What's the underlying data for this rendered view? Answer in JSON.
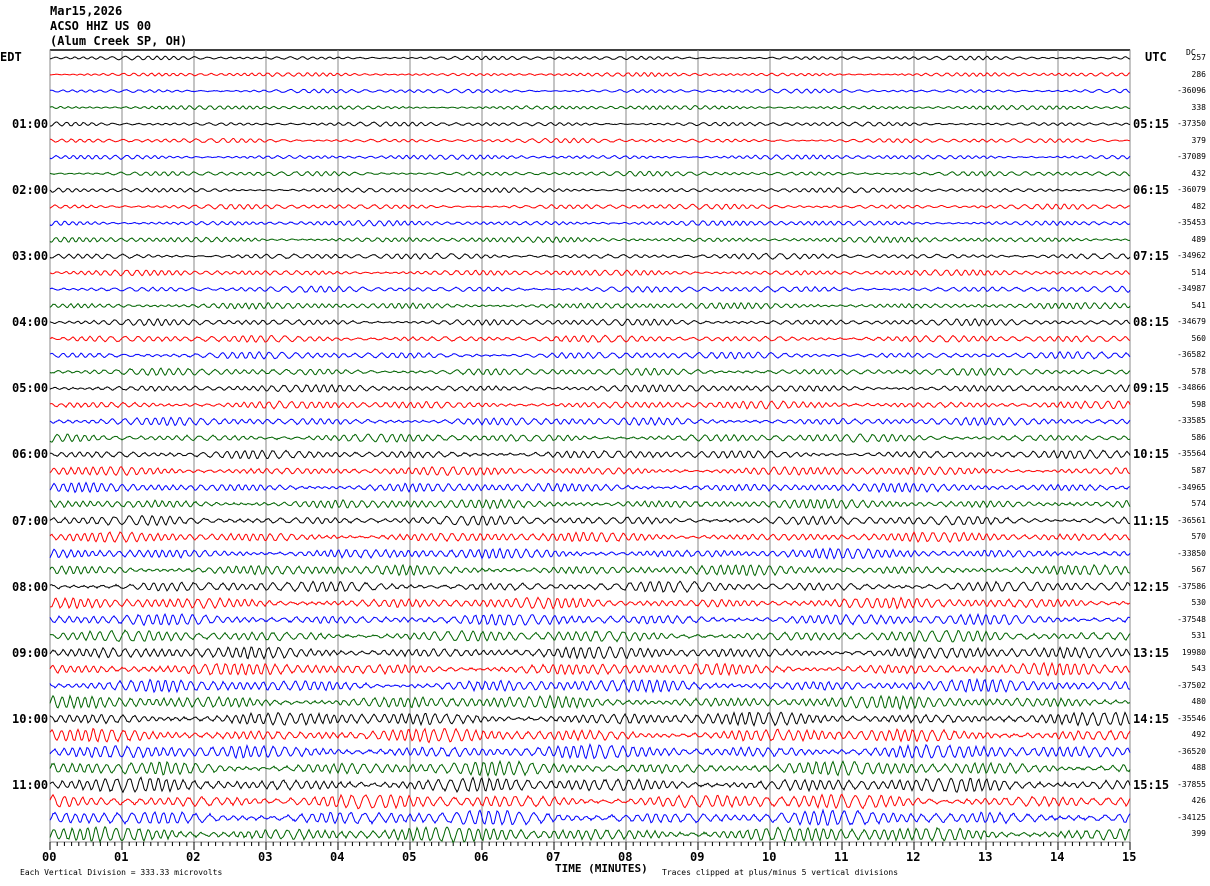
{
  "header": {
    "date": "Mar15,2026",
    "station": "ACSO HHZ US 00",
    "location": "(Alum Creek SP, OH)"
  },
  "left_timezone": "EDT",
  "right_timezone": "UTC",
  "dc_label": "DC",
  "footer": {
    "scale": "Each Vertical Division =  333.33 microvolts",
    "xlabel": "TIME (MINUTES)",
    "clip_note": "Traces clipped at plus/minus 5 vertical divisions"
  },
  "chart_data": {
    "type": "line",
    "xlabel": "TIME (MINUTES)",
    "xlim": [
      0,
      15
    ],
    "x_ticks": [
      "00",
      "01",
      "02",
      "03",
      "04",
      "05",
      "06",
      "07",
      "08",
      "09",
      "10",
      "11",
      "12",
      "13",
      "14",
      "15"
    ],
    "grid": "vertical lines each minute",
    "trace_colors": [
      "#000000",
      "#ff0000",
      "#0000ff",
      "#006400"
    ],
    "left_hour_labels": [
      "",
      "01:00",
      "02:00",
      "03:00",
      "04:00",
      "05:00",
      "06:00",
      "07:00",
      "08:00",
      "09:00",
      "10:00",
      "11:00"
    ],
    "right_hour_labels": [
      "",
      "05:15",
      "06:15",
      "07:15",
      "08:15",
      "09:15",
      "10:15",
      "11:15",
      "12:15",
      "13:15",
      "14:15",
      "15:15"
    ],
    "dc_offsets": [
      "257",
      "286",
      "-36096",
      "338",
      "-37350",
      "379",
      "-37089",
      "432",
      "-36079",
      "482",
      "-35453",
      "489",
      "-34962",
      "514",
      "-34987",
      "541",
      "-34679",
      "560",
      "-36582",
      "578",
      "-34866",
      "598",
      "-33585",
      "586",
      "-35564",
      "587",
      "-34965",
      "574",
      "-36561",
      "570",
      "-33850",
      "567",
      "-37586",
      "530",
      "-37548",
      "531",
      "19980",
      "543",
      "-37502",
      "480",
      "-35546",
      "492",
      "-36520",
      "488",
      "-37855",
      "426",
      "-34125",
      "399"
    ]
  }
}
